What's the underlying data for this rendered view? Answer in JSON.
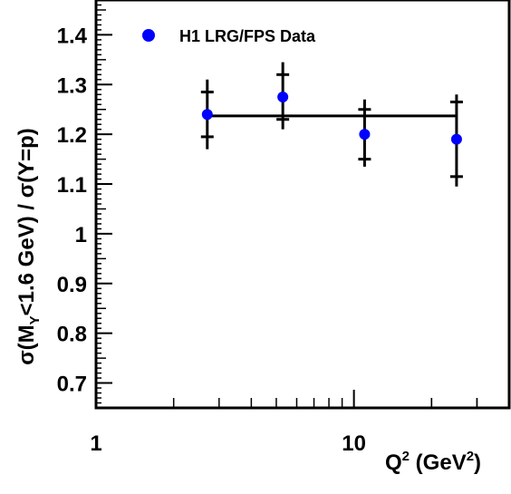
{
  "chart_data": {
    "type": "scatter",
    "xlabel": {
      "base": "Q",
      "sup1": "2",
      "unit": " (GeV",
      "sup2": "2",
      "close": ")"
    },
    "ylabel": {
      "part1": "σ(M",
      "sub": "Y",
      "part2": "<1.6 GeV) / σ(Y=p)"
    },
    "xscale": "log",
    "xlim": [
      1,
      40
    ],
    "ylim": [
      0.65,
      1.47
    ],
    "x_ticks": [
      {
        "value": 1,
        "label": "1"
      },
      {
        "value": 10,
        "label": "10"
      }
    ],
    "y_ticks": [
      {
        "value": 0.7,
        "label": "0.7"
      },
      {
        "value": 0.8,
        "label": "0.8"
      },
      {
        "value": 0.9,
        "label": "0.9"
      },
      {
        "value": 1.0,
        "label": "1"
      },
      {
        "value": 1.1,
        "label": "1.1"
      },
      {
        "value": 1.2,
        "label": "1.2"
      },
      {
        "value": 1.3,
        "label": "1.3"
      },
      {
        "value": 1.4,
        "label": "1.4"
      }
    ],
    "grid": false,
    "legend": {
      "placement": "top-left",
      "label": "H1 LRG/FPS Data"
    },
    "series": [
      {
        "name": "H1 LRG/FPS Data",
        "color": "#0000ff",
        "points": [
          {
            "x": 2.7,
            "y": 1.24,
            "stat_low": 1.195,
            "stat_high": 1.285,
            "tot_low": 1.17,
            "tot_high": 1.31
          },
          {
            "x": 5.3,
            "y": 1.275,
            "stat_low": 1.23,
            "stat_high": 1.32,
            "tot_low": 1.21,
            "tot_high": 1.345
          },
          {
            "x": 11.0,
            "y": 1.2,
            "stat_low": 1.15,
            "stat_high": 1.25,
            "tot_low": 1.135,
            "tot_high": 1.27
          },
          {
            "x": 25.0,
            "y": 1.19,
            "stat_low": 1.115,
            "stat_high": 1.265,
            "tot_low": 1.095,
            "tot_high": 1.28
          }
        ]
      }
    ],
    "fit_line": {
      "y": 1.237,
      "x_from": 2.7,
      "x_to": 25.0,
      "color": "#000000"
    }
  }
}
